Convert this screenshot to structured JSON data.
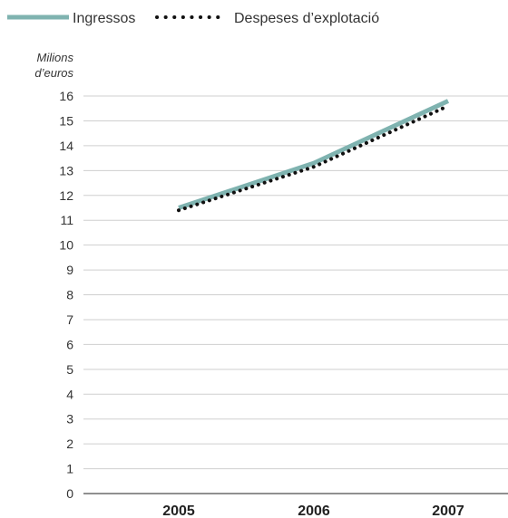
{
  "chart_data": {
    "type": "line",
    "categories": [
      "2005",
      "2006",
      "2007"
    ],
    "series": [
      {
        "name": "Ingressos",
        "values": [
          11.5,
          13.3,
          15.8
        ],
        "color": "#7fb3b0",
        "style": "solid"
      },
      {
        "name": "Despeses d'explotació",
        "values": [
          11.4,
          13.15,
          15.6
        ],
        "color": "#111111",
        "style": "dotted"
      }
    ],
    "ylabel_line1": "Milions",
    "ylabel_line2": "d’euros",
    "ylim": [
      0,
      16
    ],
    "yticks": [
      0,
      1,
      2,
      3,
      4,
      5,
      6,
      7,
      8,
      9,
      10,
      11,
      12,
      13,
      14,
      15,
      16
    ],
    "grid": true,
    "legend_position": "top-left"
  },
  "legend": {
    "item1": "Ingressos",
    "item2": "Despeses d’explotació"
  }
}
